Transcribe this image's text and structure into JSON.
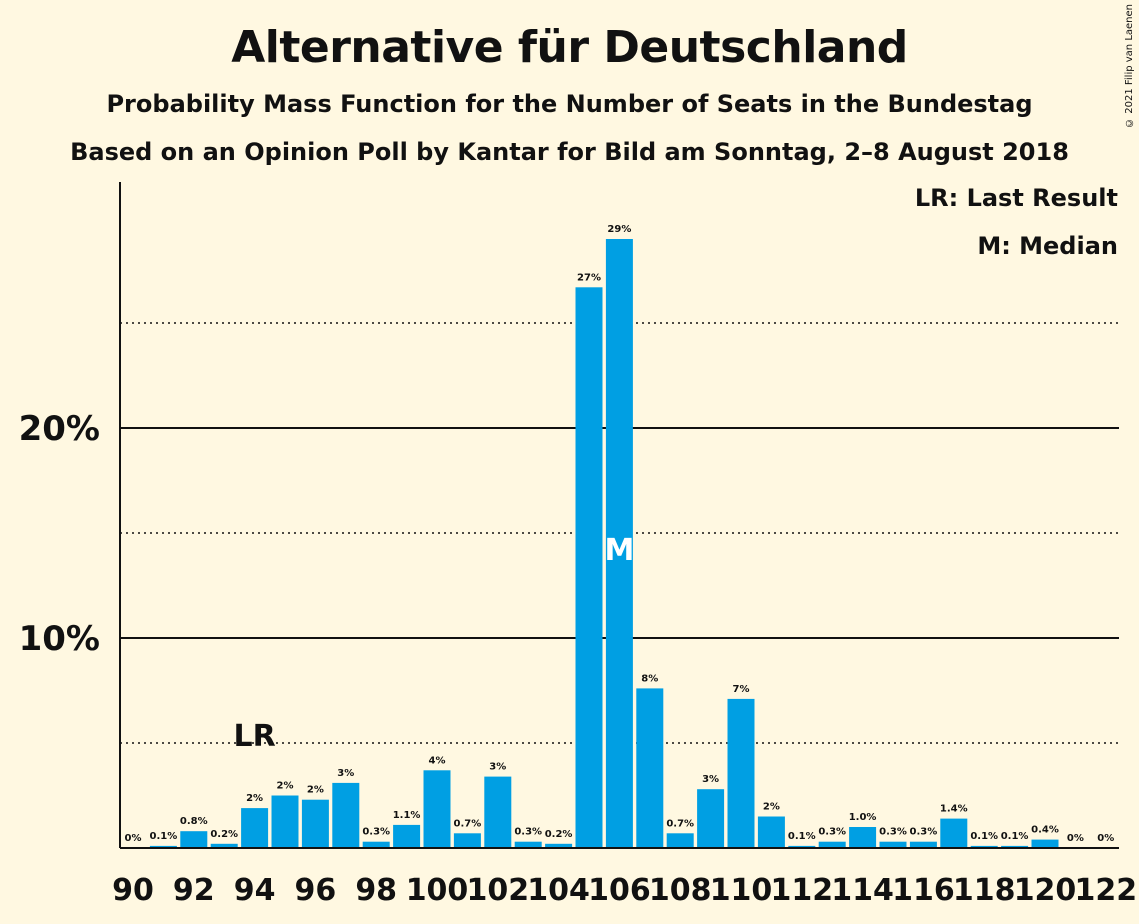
{
  "title": "Alternative für Deutschland",
  "subtitle": "Probability Mass Function for the Number of Seats in the Bundestag",
  "subtitle2": "Based on an Opinion Poll by Kantar for Bild am Sonntag, 2–8 August 2018",
  "copyright": "© 2021 Filip van Laenen",
  "legend": {
    "last_result": "LR: Last Result",
    "median": "M: Median"
  },
  "colors": {
    "bar": "#009FE3",
    "background": "#FFF8E1"
  },
  "chart_data": {
    "type": "bar",
    "x": [
      90,
      91,
      92,
      93,
      94,
      95,
      96,
      97,
      98,
      99,
      100,
      101,
      102,
      103,
      104,
      105,
      106,
      107,
      108,
      109,
      110,
      111,
      112,
      113,
      114,
      115,
      116,
      117,
      118,
      119,
      120,
      121,
      122
    ],
    "values": [
      0.0,
      0.1,
      0.8,
      0.2,
      1.9,
      2.5,
      2.3,
      3.1,
      0.3,
      1.1,
      3.7,
      0.7,
      3.4,
      0.3,
      0.2,
      26.7,
      29.0,
      7.6,
      0.7,
      2.8,
      7.1,
      1.5,
      0.1,
      0.3,
      1.0,
      0.3,
      0.3,
      1.4,
      0.1,
      0.1,
      0.4,
      0.0,
      0.0
    ],
    "labels": [
      "0%",
      "0.1%",
      "0.8%",
      "0.2%",
      "2%",
      "2%",
      "2%",
      "3%",
      "0.3%",
      "1.1%",
      "4%",
      "0.7%",
      "3%",
      "0.3%",
      "0.2%",
      "27%",
      "29%",
      "8%",
      "0.7%",
      "3%",
      "7%",
      "2%",
      "0.1%",
      "0.3%",
      "1.0%",
      "0.3%",
      "0.3%",
      "1.4%",
      "0.1%",
      "0.1%",
      "0.4%",
      "0%",
      "0%"
    ],
    "x_tick_labels": [
      "90",
      "92",
      "94",
      "96",
      "98",
      "100",
      "102",
      "104",
      "106",
      "108",
      "110",
      "112",
      "114",
      "116",
      "118",
      "120",
      "122"
    ],
    "y_tick_labels": [
      "10%",
      "20%"
    ],
    "y_ticks": [
      10,
      20
    ],
    "y_minor_ticks": [
      5,
      15,
      25
    ],
    "ylim": [
      0,
      31.5
    ],
    "last_result": {
      "seat": 94,
      "label": "LR"
    },
    "median": {
      "seat": 106,
      "label": "M"
    }
  }
}
